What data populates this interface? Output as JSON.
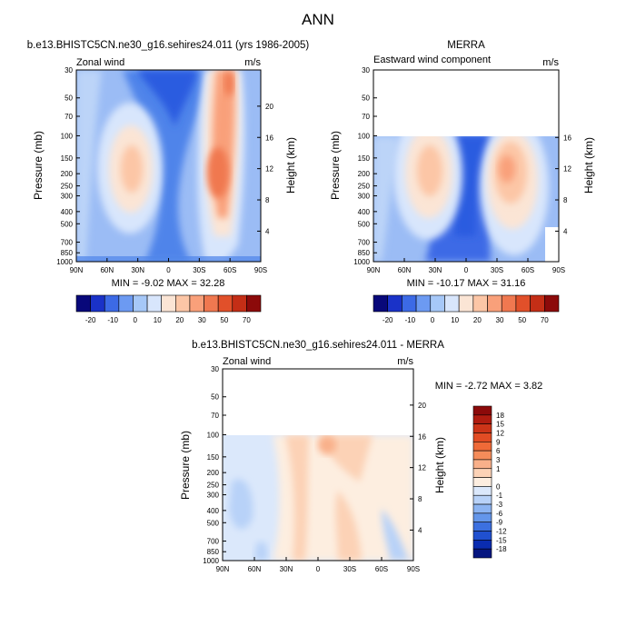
{
  "figure": {
    "title": "ANN"
  },
  "chart_data": [
    {
      "type": "heatmap",
      "title": "b.e13.BHISTC5CN.ne30_g16.sehires24.011 (yrs 1986-2005)",
      "variable": "Zonal wind",
      "units": "m/s",
      "xlabel": "",
      "ylabel": "Pressure (mb)",
      "y2label": "Height (km)",
      "x_ticks": [
        "90N",
        "60N",
        "30N",
        "0",
        "30S",
        "60S",
        "90S"
      ],
      "y_ticks": [
        "30",
        "50",
        "70",
        "100",
        "150",
        "200",
        "250",
        "300",
        "400",
        "500",
        "700",
        "850",
        "1000"
      ],
      "y2_ticks": [
        "20",
        "16",
        "12",
        "8",
        "4"
      ],
      "ylim": [
        1000,
        30
      ],
      "stats": "MIN = -9.02  MAX = 32.28",
      "min": -9.02,
      "max": 32.28,
      "colorbar": {
        "labels": [
          "-20",
          "-10",
          "0",
          "10",
          "20",
          "30",
          "50",
          "70"
        ],
        "colors": [
          "#08087a",
          "#1a32c8",
          "#3c6ae6",
          "#6c9af2",
          "#a6c8f8",
          "#d8e6fc",
          "#fbe5d5",
          "#fcc6a6",
          "#f9a07a",
          "#f07850",
          "#e1502a",
          "#c42e16",
          "#8c0a0a"
        ]
      }
    },
    {
      "type": "heatmap",
      "title": "MERRA",
      "variable": "Eastward wind component",
      "units": "m/s",
      "xlabel": "",
      "ylabel": "Pressure (mb)",
      "y2label": "Height (km)",
      "x_ticks": [
        "90N",
        "60N",
        "30N",
        "0",
        "30S",
        "60S",
        "90S"
      ],
      "y_ticks": [
        "30",
        "50",
        "70",
        "100",
        "150",
        "200",
        "250",
        "300",
        "400",
        "500",
        "700",
        "850",
        "1000"
      ],
      "y2_ticks": [
        "16",
        "12",
        "8",
        "4"
      ],
      "ylim": [
        1000,
        30
      ],
      "stats": "MIN = -10.17  MAX = 31.16",
      "min": -10.17,
      "max": 31.16,
      "colorbar": {
        "labels": [
          "-20",
          "-10",
          "0",
          "10",
          "20",
          "30",
          "50",
          "70"
        ],
        "colors": [
          "#08087a",
          "#1a32c8",
          "#3c6ae6",
          "#6c9af2",
          "#a6c8f8",
          "#d8e6fc",
          "#fbe5d5",
          "#fcc6a6",
          "#f9a07a",
          "#f07850",
          "#e1502a",
          "#c42e16",
          "#8c0a0a"
        ]
      }
    },
    {
      "type": "heatmap",
      "title": "b.e13.BHISTC5CN.ne30_g16.sehires24.011 - MERRA",
      "variable": "Zonal wind",
      "units": "m/s",
      "xlabel": "",
      "ylabel": "Pressure (mb)",
      "y2label": "Height (km)",
      "x_ticks": [
        "90N",
        "60N",
        "30N",
        "0",
        "30S",
        "60S",
        "90S"
      ],
      "y_ticks": [
        "30",
        "50",
        "70",
        "100",
        "150",
        "200",
        "250",
        "300",
        "400",
        "500",
        "700",
        "850",
        "1000"
      ],
      "y2_ticks": [
        "20",
        "16",
        "12",
        "8",
        "4"
      ],
      "ylim": [
        1000,
        30
      ],
      "stats": "MIN =  -2.72  MAX =   3.82",
      "min": -2.72,
      "max": 3.82,
      "colorbar": {
        "labels": [
          "18",
          "15",
          "12",
          "9",
          "6",
          "3",
          "1",
          "0",
          "-1",
          "-3",
          "-6",
          "-9",
          "-12",
          "-15",
          "-18"
        ],
        "colors": [
          "#8c0a0a",
          "#b01c10",
          "#cc3418",
          "#e24c24",
          "#ef6a38",
          "#f58c5a",
          "#f9b08a",
          "#fcd2b6",
          "#fdeee0",
          "#dbe8fb",
          "#b8d2f8",
          "#8cb4f2",
          "#6496ea",
          "#3c70e0",
          "#2050d0",
          "#0a2cb0",
          "#061680"
        ]
      }
    }
  ]
}
